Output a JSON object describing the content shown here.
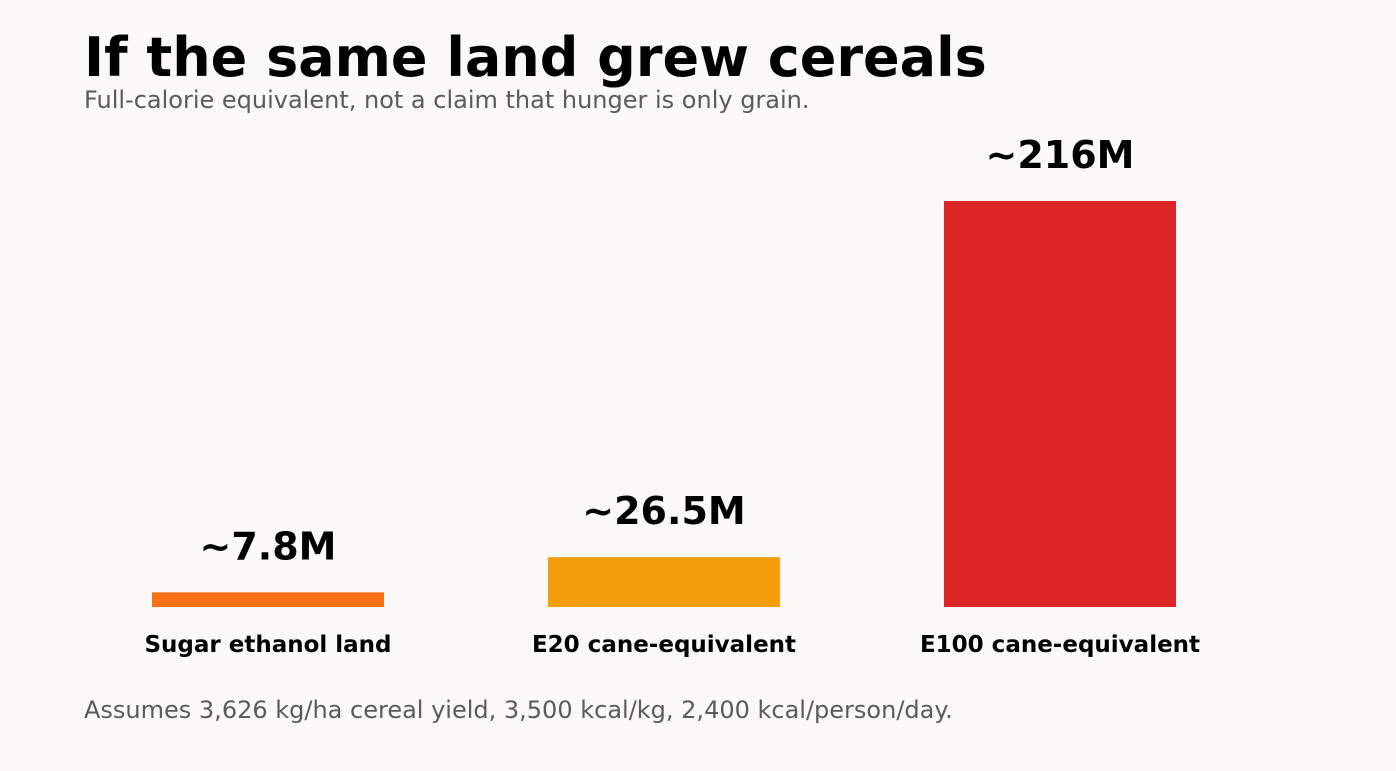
{
  "header": {
    "title": "If the same land grew cereals",
    "subtitle": "Full-calorie equivalent, not a claim that hunger is only grain."
  },
  "footnote": "Assumes 3,626 kg/ha cereal yield, 3,500 kcal/kg, 2,400 kcal/person/day.",
  "chart_data": {
    "type": "bar",
    "title": "If the same land grew cereals",
    "subtitle": "Full-calorie equivalent, not a claim that hunger is only grain.",
    "categories": [
      "Sugar ethanol land",
      "E20 cane-equivalent",
      "E100 cane-equivalent"
    ],
    "values": [
      7.8,
      26.5,
      216
    ],
    "data_labels": [
      "~7.8M",
      "~26.5M",
      "~216M"
    ],
    "colors": [
      "#f97316",
      "#f59e0b",
      "#dc2626"
    ],
    "xlabel": "",
    "ylabel": "",
    "ylim": [
      0,
      216
    ],
    "grid": false,
    "legend": "none"
  }
}
